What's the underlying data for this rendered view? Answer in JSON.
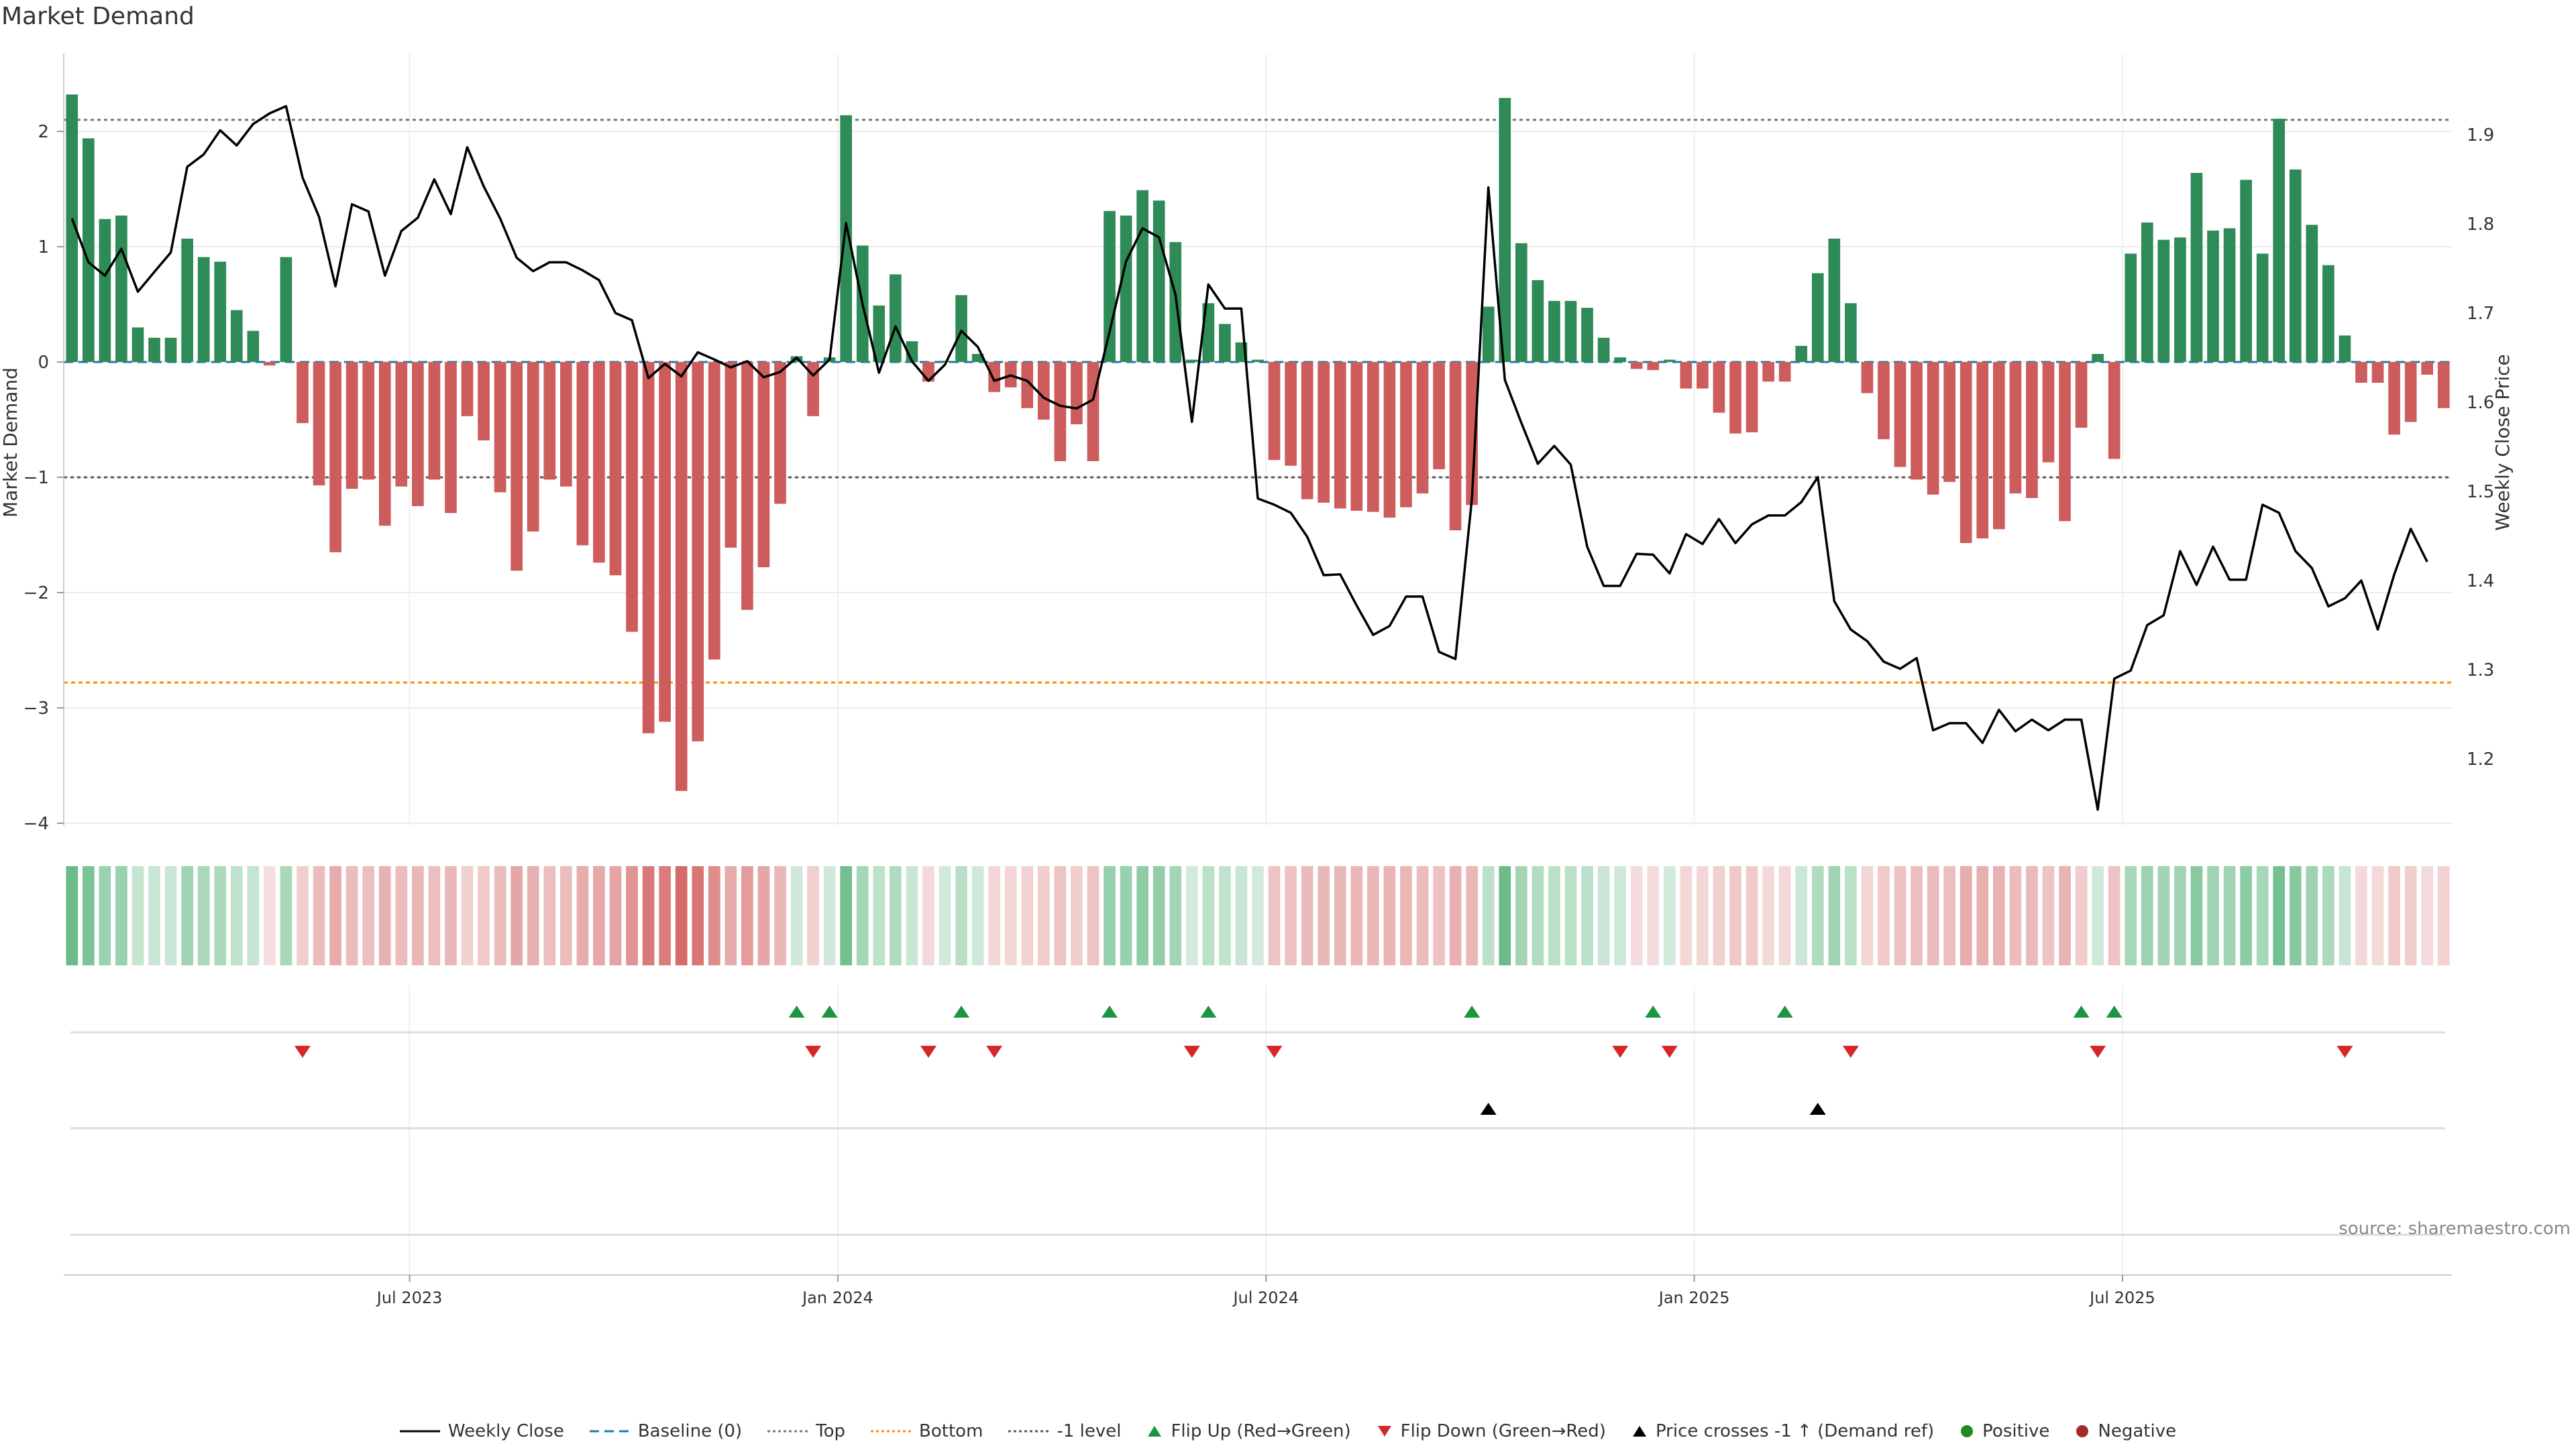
{
  "chart_data": {
    "type": "bar+line",
    "title": "Market Demand",
    "ylabel_left": "Market Demand",
    "ylabel_right": "Weekly Close Price",
    "ylim_left": [
      -4.3,
      2.6
    ],
    "ylim_right": [
      1.1,
      1.98
    ],
    "yticks_left": [
      2,
      1,
      0,
      -1,
      -2,
      -3,
      -4
    ],
    "ytick_labels_left": [
      "2",
      "1",
      "0",
      "−1",
      "−2",
      "−3",
      "−4"
    ],
    "yticks_right": [
      1.9,
      1.8,
      1.7,
      1.6,
      1.5,
      1.4,
      1.3,
      1.2
    ],
    "xtick_labels": [
      "Jul 2023",
      "Jan 2024",
      "Jul 2024",
      "Jan 2025",
      "Jul 2025"
    ],
    "xtick_positions_week": [
      21,
      47,
      73,
      99,
      125
    ],
    "reference_levels": {
      "top": 2.1,
      "minus_one": -1.0,
      "bottom": -2.78,
      "baseline": 0
    },
    "demand": [
      2.32,
      1.94,
      1.24,
      1.27,
      0.3,
      0.21,
      0.21,
      1.07,
      0.91,
      0.87,
      0.45,
      0.27,
      -0.03,
      0.91,
      -0.53,
      -1.07,
      -1.65,
      -1.1,
      -1.02,
      -1.42,
      -1.08,
      -1.25,
      -1.02,
      -1.31,
      -0.47,
      -0.68,
      -1.13,
      -1.81,
      -1.47,
      -1.02,
      -1.08,
      -1.59,
      -1.74,
      -1.85,
      -2.34,
      -3.22,
      -3.12,
      -3.72,
      -3.29,
      -2.58,
      -1.61,
      -2.15,
      -1.78,
      -1.23,
      0.05,
      -0.47,
      0.04,
      2.14,
      1.01,
      0.49,
      0.76,
      0.18,
      -0.17,
      0.01,
      0.58,
      0.07,
      -0.26,
      -0.22,
      -0.4,
      -0.5,
      -0.86,
      -0.54,
      -0.86,
      1.31,
      1.27,
      1.49,
      1.4,
      1.04,
      0.02,
      0.51,
      0.33,
      0.17,
      0.02,
      -0.85,
      -0.9,
      -1.19,
      -1.22,
      -1.27,
      -1.29,
      -1.3,
      -1.35,
      -1.26,
      -1.14,
      -0.93,
      -1.46,
      -1.24,
      0.48,
      2.29,
      1.03,
      0.71,
      0.53,
      0.53,
      0.47,
      0.21,
      0.04,
      -0.06,
      -0.07,
      0.02,
      -0.23,
      -0.23,
      -0.44,
      -0.62,
      -0.61,
      -0.17,
      -0.17,
      0.14,
      0.77,
      1.07,
      0.51,
      -0.27,
      -0.67,
      -0.91,
      -1.02,
      -1.15,
      -1.04,
      -1.57,
      -1.53,
      -1.45,
      -1.14,
      -1.18,
      -0.87,
      -1.38,
      -0.57,
      0.07,
      -0.84,
      0.94,
      1.21,
      1.06,
      1.08,
      1.64,
      1.14,
      1.16,
      1.58,
      0.94,
      2.11,
      1.67,
      1.19,
      0.84,
      0.23,
      -0.18,
      -0.18,
      -0.63,
      -0.52,
      -0.11,
      -0.4
    ],
    "close": [
      1.806,
      1.757,
      1.742,
      1.772,
      1.724,
      1.746,
      1.768,
      1.864,
      1.878,
      1.905,
      1.888,
      1.912,
      1.924,
      1.932,
      1.852,
      1.808,
      1.73,
      1.822,
      1.814,
      1.742,
      1.792,
      1.807,
      1.85,
      1.811,
      1.886,
      1.842,
      1.806,
      1.762,
      1.747,
      1.757,
      1.757,
      1.748,
      1.737,
      1.7,
      1.692,
      1.627,
      1.643,
      1.629,
      1.656,
      1.648,
      1.639,
      1.646,
      1.628,
      1.634,
      1.65,
      1.63,
      1.648,
      1.801,
      1.71,
      1.633,
      1.685,
      1.646,
      1.624,
      1.642,
      1.68,
      1.662,
      1.624,
      1.63,
      1.624,
      1.605,
      1.596,
      1.593,
      1.603,
      1.679,
      1.758,
      1.795,
      1.785,
      1.721,
      1.578,
      1.732,
      1.705,
      1.705,
      1.492,
      1.485,
      1.476,
      1.449,
      1.406,
      1.407,
      1.372,
      1.339,
      1.349,
      1.382,
      1.382,
      1.32,
      1.312,
      1.492,
      1.841,
      1.625,
      1.577,
      1.531,
      1.551,
      1.53,
      1.438,
      1.394,
      1.394,
      1.43,
      1.429,
      1.408,
      1.452,
      1.441,
      1.469,
      1.442,
      1.463,
      1.473,
      1.473,
      1.488,
      1.516,
      1.377,
      1.345,
      1.332,
      1.309,
      1.301,
      1.313,
      1.232,
      1.24,
      1.24,
      1.218,
      1.255,
      1.231,
      1.244,
      1.232,
      1.244,
      1.244,
      1.143,
      1.29,
      1.299,
      1.35,
      1.361,
      1.433,
      1.395,
      1.438,
      1.401,
      1.401,
      1.485,
      1.476,
      1.433,
      1.414,
      1.371,
      1.38,
      1.4,
      1.345,
      1.407,
      1.458,
      1.421
    ],
    "flip_up_weeks": [
      44,
      46,
      54,
      63,
      69,
      85,
      96,
      104,
      122,
      124
    ],
    "flip_down_weeks": [
      14,
      45,
      52,
      56,
      68,
      73,
      94,
      97,
      108,
      123,
      138
    ],
    "price_cross_weeks": [
      86,
      106
    ],
    "legend": [
      {
        "label": "Weekly Close",
        "style": "line",
        "color": "#000000"
      },
      {
        "label": "Baseline (0)",
        "style": "dashed",
        "color": "#1f77b4"
      },
      {
        "label": "Top",
        "style": "dotted",
        "color": "#777777"
      },
      {
        "label": "Bottom",
        "style": "dotted",
        "color": "#ff8c00"
      },
      {
        "label": "-1 level",
        "style": "dotted",
        "color": "#555555"
      },
      {
        "label": "Flip Up (Red→Green)",
        "style": "triangle-up",
        "color": "#1a9641"
      },
      {
        "label": "Flip Down (Green→Red)",
        "style": "triangle-down",
        "color": "#d62728"
      },
      {
        "label": "Price crosses -1 ↑ (Demand ref)",
        "style": "triangle-up",
        "color": "#000000"
      },
      {
        "label": "Positive",
        "style": "circle",
        "color": "#228b22"
      },
      {
        "label": "Negative",
        "style": "circle",
        "color": "#a52a2a"
      }
    ],
    "colors": {
      "positive": "#2e8b57",
      "negative": "#cd5c5c",
      "line": "#000000"
    }
  },
  "source": "source: sharemaestro.com"
}
